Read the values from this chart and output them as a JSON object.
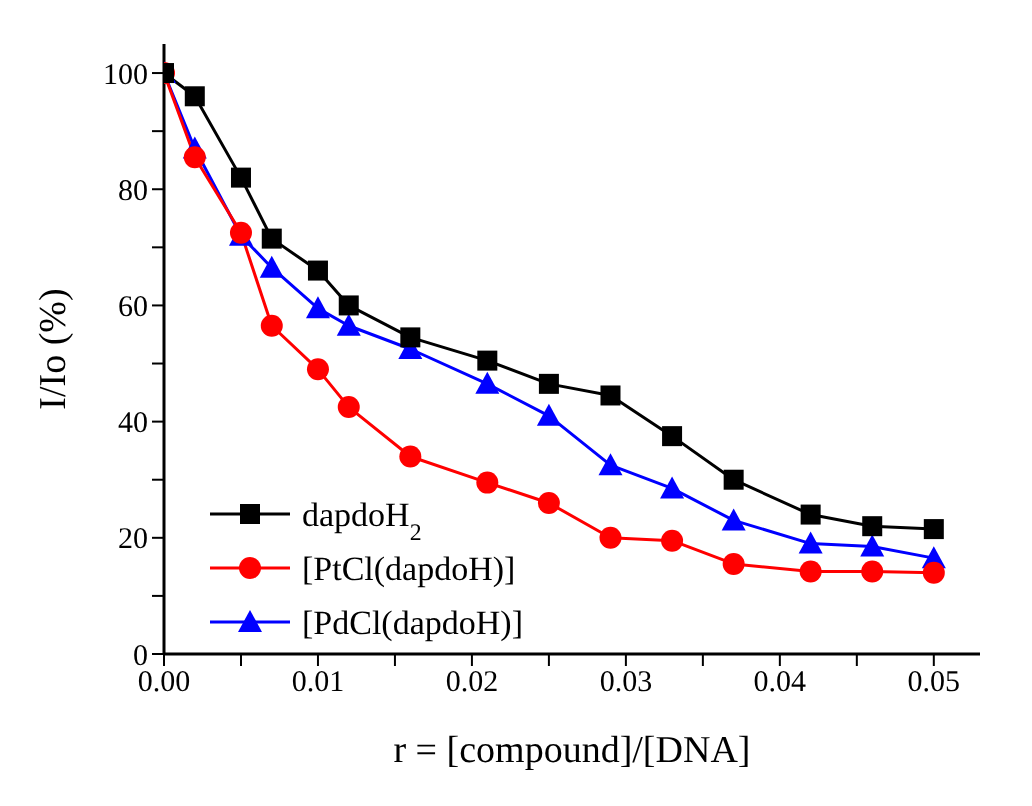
{
  "chart_data": {
    "type": "line",
    "xlabel": "r = [compound]/[DNA]",
    "ylabel": "I/Io (%)",
    "x": [
      0,
      0.002,
      0.005,
      0.007,
      0.01,
      0.012,
      0.016,
      0.021,
      0.025,
      0.029,
      0.033,
      0.037,
      0.042,
      0.046,
      0.05
    ],
    "series": [
      {
        "name": "dapdoH$_{2}$",
        "color": "#000000",
        "marker": "square",
        "values": [
          100,
          96,
          82,
          71.5,
          66,
          60,
          54.5,
          50.5,
          46.5,
          44.5,
          37.5,
          30,
          24,
          22,
          21.5
        ]
      },
      {
        "name": "[PtCl(dapdoH)]",
        "color": "#ff0000",
        "marker": "circle",
        "values": [
          100,
          85.5,
          72.5,
          56.5,
          49,
          42.5,
          34,
          29.5,
          26,
          20,
          19.5,
          15.5,
          14.2,
          14.2,
          14
        ]
      },
      {
        "name": "[PdCl(dapdoH)]",
        "color": "#0000ff",
        "marker": "triangle",
        "values": [
          100,
          87,
          72,
          66.5,
          59.5,
          56.5,
          52.5,
          46.5,
          41,
          32.5,
          28.5,
          23,
          19,
          18.5,
          16.5
        ]
      }
    ],
    "xlim": [
      0,
      0.053
    ],
    "xticks": [
      {
        "value": 0,
        "label": "0.00"
      },
      {
        "value": 0.005,
        "label": null
      },
      {
        "value": 0.01,
        "label": "0.01"
      },
      {
        "value": 0.015,
        "label": null
      },
      {
        "value": 0.02,
        "label": "0.02"
      },
      {
        "value": 0.025,
        "label": null
      },
      {
        "value": 0.03,
        "label": "0.03"
      },
      {
        "value": 0.035,
        "label": null
      },
      {
        "value": 0.04,
        "label": "0.04"
      },
      {
        "value": 0.045,
        "label": null
      },
      {
        "value": 0.05,
        "label": "0.05"
      }
    ],
    "ylim": [
      0,
      105
    ],
    "yticks": [
      0,
      {
        "value": 10,
        "label": null
      },
      20,
      {
        "value": 30,
        "label": null
      },
      40,
      {
        "value": 50,
        "label": null
      },
      60,
      {
        "value": 70,
        "label": null
      },
      80,
      {
        "value": 90,
        "label": null
      },
      100
    ],
    "grid": false,
    "legend": "bottom left",
    "line_style": "solid"
  }
}
